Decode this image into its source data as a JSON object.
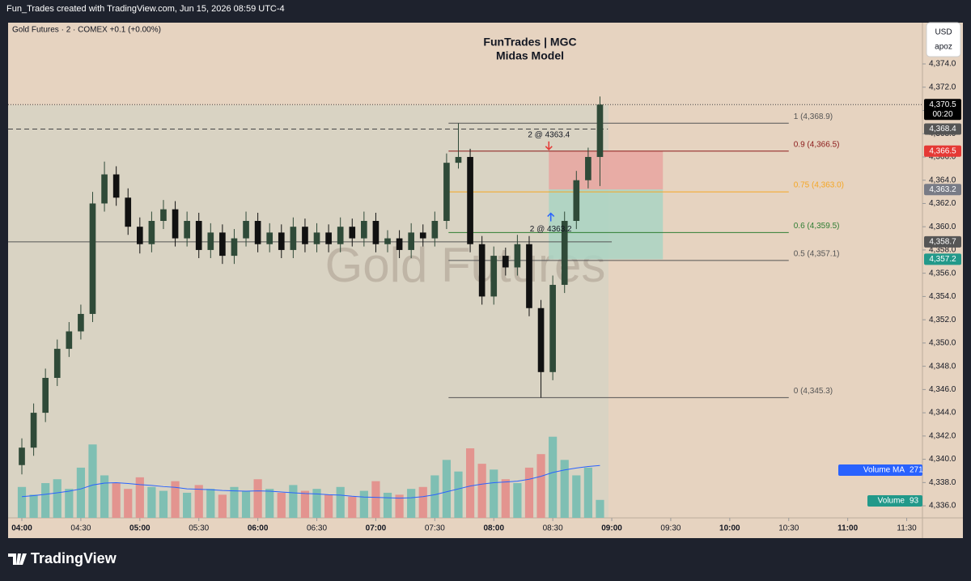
{
  "header": {
    "credit": "Fun_Trades created with TradingView.com, Jun 15, 2026 08:59 UTC-4",
    "symbol": "Gold Futures · 2 · COMEX +0.1 (+0.00%)",
    "currency": "USD",
    "unit": "apoz",
    "brand": "TradingView"
  },
  "chart_data": {
    "type": "candlestick",
    "title": "FunTrades | MGC",
    "subtitle": "Midas Model",
    "watermark": "Gold Futures",
    "x": [
      "04:00",
      "04:06",
      "04:12",
      "04:18",
      "04:24",
      "04:30",
      "04:36",
      "04:42",
      "04:48",
      "04:54",
      "05:00",
      "05:06",
      "05:12",
      "05:18",
      "05:24",
      "05:30",
      "05:36",
      "05:42",
      "05:48",
      "05:54",
      "06:00",
      "06:06",
      "06:12",
      "06:18",
      "06:24",
      "06:30",
      "06:36",
      "06:42",
      "06:48",
      "06:54",
      "07:00",
      "07:06",
      "07:12",
      "07:18",
      "07:24",
      "07:30",
      "07:36",
      "07:42",
      "07:48",
      "07:54",
      "08:00",
      "08:06",
      "08:12",
      "08:18",
      "08:24",
      "08:30",
      "08:36",
      "08:42",
      "08:48",
      "08:54"
    ],
    "open": [
      4339.5,
      4341.0,
      4344.0,
      4347.0,
      4349.5,
      4351.0,
      4352.5,
      4362.0,
      4364.5,
      4362.5,
      4360.0,
      4358.5,
      4360.5,
      4361.5,
      4359.0,
      4360.5,
      4358.0,
      4359.5,
      4357.5,
      4359.0,
      4360.5,
      4358.5,
      4359.5,
      4358.0,
      4360.0,
      4358.5,
      4359.5,
      4358.5,
      4360.0,
      4359.0,
      4360.5,
      4358.5,
      4359.0,
      4358.0,
      4359.5,
      4359.0,
      4360.5,
      4365.5,
      4366.0,
      4358.5,
      4354.0,
      4357.5,
      4356.5,
      4358.5,
      4353.0,
      4347.5,
      4355.0,
      4360.5,
      4364.0,
      4366.0
    ],
    "high": [
      4341.8,
      4344.8,
      4347.8,
      4350.3,
      4351.8,
      4353.3,
      4363.0,
      4365.6,
      4365.2,
      4363.3,
      4360.8,
      4361.3,
      4362.3,
      4362.2,
      4361.3,
      4361.2,
      4360.3,
      4360.2,
      4359.8,
      4361.3,
      4361.2,
      4360.3,
      4360.2,
      4360.8,
      4360.7,
      4360.3,
      4360.2,
      4360.8,
      4360.7,
      4361.3,
      4361.2,
      4359.7,
      4359.7,
      4360.3,
      4360.2,
      4361.3,
      4366.3,
      4368.9,
      4366.7,
      4359.2,
      4358.3,
      4358.2,
      4359.3,
      4359.2,
      4353.7,
      4355.8,
      4361.3,
      4364.8,
      4366.8,
      4371.2
    ],
    "low": [
      4338.7,
      4340.3,
      4343.2,
      4346.3,
      4348.8,
      4350.3,
      4351.8,
      4361.3,
      4361.8,
      4359.3,
      4357.7,
      4357.8,
      4359.8,
      4358.3,
      4358.3,
      4357.3,
      4357.3,
      4356.8,
      4356.8,
      4358.3,
      4357.8,
      4357.8,
      4357.3,
      4357.3,
      4357.8,
      4357.8,
      4357.8,
      4357.8,
      4358.3,
      4358.3,
      4357.8,
      4357.8,
      4357.3,
      4357.3,
      4358.3,
      4358.3,
      4359.8,
      4365.0,
      4357.8,
      4353.3,
      4353.3,
      4355.8,
      4355.8,
      4352.3,
      4345.3,
      4346.8,
      4354.3,
      4359.8,
      4363.3,
      4363.5
    ],
    "up_color": "#2f4a38",
    "down_color": "#111111",
    "volume": [
      160,
      120,
      180,
      200,
      150,
      260,
      380,
      220,
      180,
      150,
      210,
      160,
      140,
      190,
      130,
      170,
      150,
      120,
      160,
      140,
      200,
      150,
      130,
      170,
      140,
      150,
      120,
      160,
      110,
      140,
      190,
      130,
      120,
      150,
      160,
      220,
      300,
      240,
      360,
      280,
      250,
      200,
      180,
      260,
      330,
      420,
      300,
      220,
      260,
      93
    ],
    "volume_ma": [
      110,
      115,
      122,
      130,
      138,
      150,
      170,
      180,
      182,
      178,
      172,
      168,
      162,
      158,
      150,
      148,
      146,
      142,
      140,
      138,
      140,
      138,
      134,
      130,
      126,
      124,
      120,
      118,
      112,
      108,
      106,
      104,
      102,
      104,
      110,
      120,
      135,
      150,
      165,
      175,
      182,
      186,
      190,
      200,
      215,
      235,
      248,
      258,
      266,
      271
    ],
    "volume_up_color": "#7fbfb3",
    "volume_down_color": "#e3948f",
    "volume_ma_color": "#2962ff",
    "volume_lim": [
      0,
      670
    ],
    "legend": [
      {
        "name": "Volume MA",
        "value": 271,
        "color": "#2962ff"
      },
      {
        "name": "Volume",
        "value": 93,
        "color": "#22998a"
      }
    ],
    "xlim": [
      "03:53",
      "11:38"
    ],
    "xticks": [
      "04:00",
      "04:30",
      "05:00",
      "05:30",
      "06:00",
      "06:30",
      "07:00",
      "07:30",
      "08:00",
      "08:30",
      "09:00",
      "09:30",
      "10:00",
      "10:30",
      "11:00",
      "11:30"
    ],
    "ylim": [
      4334.96,
      4377.55
    ],
    "yticks": [
      {
        "value": 4336,
        "label": "4,336.0"
      },
      {
        "value": 4338,
        "label": "4,338.0"
      },
      {
        "value": 4340,
        "label": "4,340.0"
      },
      {
        "value": 4342,
        "label": "4,342.0"
      },
      {
        "value": 4344,
        "label": "4,344.0"
      },
      {
        "value": 4346,
        "label": "4,346.0"
      },
      {
        "value": 4348,
        "label": "4,348.0"
      },
      {
        "value": 4350,
        "label": "4,350.0"
      },
      {
        "value": 4352,
        "label": "4,352.0"
      },
      {
        "value": 4354,
        "label": "4,354.0"
      },
      {
        "value": 4356,
        "label": "4,356.0"
      },
      {
        "value": 4358,
        "label": "4,358.0"
      },
      {
        "value": 4360,
        "label": "4,360.0"
      },
      {
        "value": 4362,
        "label": "4,362.0"
      },
      {
        "value": 4364,
        "label": "4,364.0"
      },
      {
        "value": 4366,
        "label": "4,366.0"
      },
      {
        "value": 4368,
        "label": "4,368.0"
      },
      {
        "value": 4370,
        "label": "4,370.0"
      },
      {
        "value": 4372,
        "label": "4,372.0"
      },
      {
        "value": 4374,
        "label": "4,374.0"
      }
    ],
    "fib": {
      "from": "07:37",
      "to": "10:30",
      "levels": [
        {
          "value": 4368.9,
          "label": "1 (4,368.9)",
          "color": "#555555"
        },
        {
          "value": 4366.5,
          "label": "0.9 (4,366.5)",
          "color": "#8b1a1a"
        },
        {
          "value": 4363.0,
          "label": "0.75 (4,363.0)",
          "color": "#f5a623"
        },
        {
          "value": 4359.5,
          "label": "0.6 (4,359.5)",
          "color": "#2e7d32"
        },
        {
          "value": 4357.1,
          "label": "0.5 (4,357.1)",
          "color": "#555555"
        },
        {
          "value": 4345.3,
          "label": "0 (4,345.3)",
          "color": "#555555"
        }
      ]
    },
    "position": {
      "from": "08:28",
      "to": "09:26",
      "stop": 4366.5,
      "entry": 4363.2,
      "target": 4357.2,
      "stop_color": "#e8a5a0",
      "target_color": "#a9d3c3"
    },
    "trades": [
      {
        "label": "2 @ 4363.4",
        "time": "08:28",
        "price": 4366.5,
        "direction": "down",
        "color": "#e53935"
      },
      {
        "label": "2 @ 4363.2",
        "time": "08:29",
        "price": 4361.3,
        "direction": "up",
        "color": "#2962ff"
      }
    ],
    "price_lines": [
      {
        "value": 4368.4,
        "style": "dashed",
        "to": "08:58"
      },
      {
        "value": 4358.7,
        "style": "solid",
        "to": "09:00"
      },
      {
        "value": 4370.5,
        "style": "dotted",
        "to": "11:38"
      }
    ],
    "price_labels": [
      {
        "value": 4370.5,
        "label": "4,370.5",
        "sub": "00:20",
        "color": "#000000"
      },
      {
        "value": 4368.4,
        "label": "4,368.4",
        "color": "#555555"
      },
      {
        "value": 4366.5,
        "label": "4,366.5",
        "color": "#e53935"
      },
      {
        "value": 4363.2,
        "label": "4,363.2",
        "color": "#787b86"
      },
      {
        "value": 4358.7,
        "label": "4,358.7",
        "color": "#555555"
      },
      {
        "value": 4357.2,
        "label": "4,357.2",
        "color": "#22998a"
      }
    ]
  }
}
